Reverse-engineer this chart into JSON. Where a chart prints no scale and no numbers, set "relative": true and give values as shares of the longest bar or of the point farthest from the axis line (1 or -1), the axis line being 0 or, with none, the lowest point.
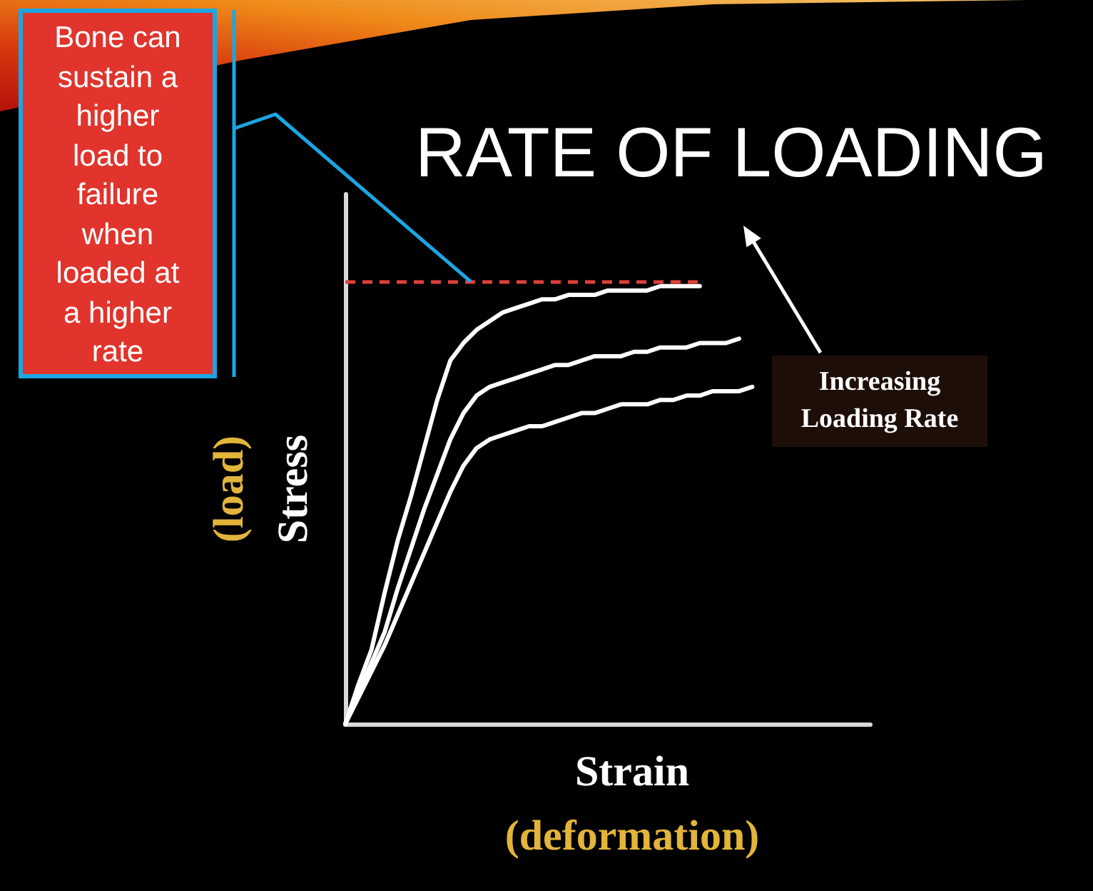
{
  "chart_data": {
    "type": "line",
    "title": "RATE OF LOADING",
    "xlabel": "Strain\n(deformation)",
    "ylabel": "(load)\nStress",
    "relative": true,
    "ylim": [
      0,
      1.21
    ],
    "categories": [
      null,
      null,
      null,
      null,
      null,
      null,
      null,
      null,
      null,
      null,
      null,
      null,
      null,
      null,
      null,
      null,
      null,
      null,
      null,
      null,
      null,
      null,
      null,
      null,
      null,
      null,
      null,
      null,
      null,
      null,
      null,
      null,
      null,
      null,
      null,
      null,
      null,
      null,
      null,
      null,
      null
    ],
    "series": [
      {
        "color": "#ffffff",
        "values": [
          0,
          0.09,
          0.17,
          0.3,
          0.42,
          0.52,
          0.63,
          0.74,
          0.83,
          0.87,
          0.9,
          0.92,
          0.94,
          0.95,
          0.96,
          0.97,
          0.97,
          0.98,
          0.98,
          0.98,
          0.99,
          0.99,
          0.99,
          0.99,
          1,
          1,
          1,
          1,
          null,
          null,
          null,
          null,
          null,
          null,
          null,
          null,
          null,
          null,
          null,
          null,
          null
        ]
      },
      {
        "color": "#ffffff",
        "values": [
          0,
          0.07,
          0.14,
          0.21,
          0.31,
          0.4,
          0.49,
          0.57,
          0.65,
          0.71,
          0.75,
          0.77,
          0.78,
          0.79,
          0.8,
          0.81,
          0.82,
          0.82,
          0.83,
          0.84,
          0.84,
          0.84,
          0.85,
          0.85,
          0.86,
          0.86,
          0.86,
          0.87,
          0.87,
          0.87,
          0.88,
          null,
          null,
          null,
          null,
          null,
          null,
          null,
          null,
          null,
          null
        ]
      },
      {
        "color": "#ffffff",
        "values": [
          0,
          0.06,
          0.12,
          0.18,
          0.25,
          0.32,
          0.39,
          0.46,
          0.53,
          0.59,
          0.63,
          0.65,
          0.66,
          0.67,
          0.68,
          0.68,
          0.69,
          0.7,
          0.71,
          0.71,
          0.72,
          0.73,
          0.73,
          0.73,
          0.74,
          0.74,
          0.75,
          0.75,
          0.76,
          0.76,
          0.76,
          0.77,
          null,
          null,
          null,
          null,
          null,
          null,
          null,
          null,
          null
        ]
      }
    ],
    "ref_lines": [
      {
        "axis": "y",
        "value": 1.01,
        "color": "#e0403a",
        "line_style": "dashed"
      }
    ],
    "annotations": [
      "Bone can sustain a higher load to failure when loaded at a higher rate",
      "Increasing Loading Rate"
    ],
    "marker": "none",
    "line_style": "solid",
    "grid": false
  }
}
